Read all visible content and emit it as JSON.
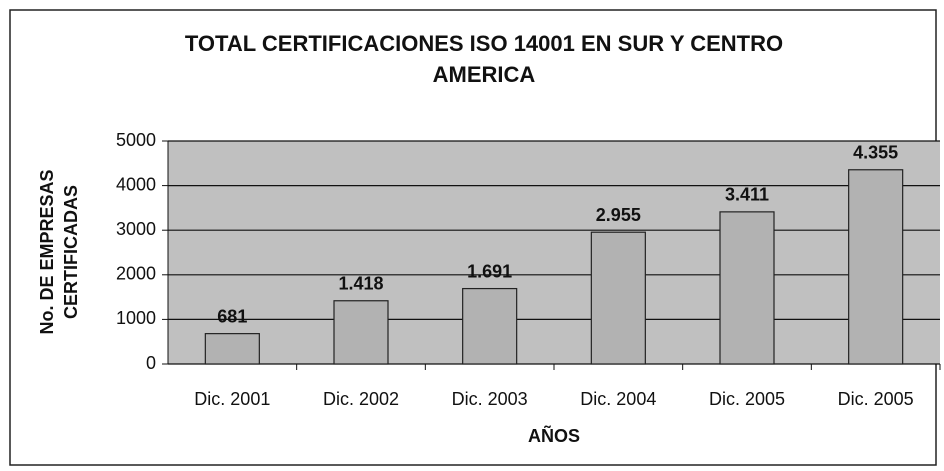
{
  "chart_data": {
    "type": "bar",
    "title": [
      "TOTAL CERTIFICACIONES ISO 14001 EN SUR Y CENTRO",
      "AMERICA"
    ],
    "y_label": [
      "No. DE EMPRESAS",
      "CERTIFICADAS"
    ],
    "x_label": "AÑOS",
    "categories": [
      "Dic. 2001",
      "Dic. 2002",
      "Dic. 2003",
      "Dic. 2004",
      "Dic. 2005",
      "Dic. 2005"
    ],
    "values": [
      681,
      1418,
      1691,
      2955,
      3411,
      4355
    ],
    "value_labels": [
      "681",
      "1.418",
      "1.691",
      "2.955",
      "3.411",
      "4.355"
    ],
    "color": "#b2b2b2",
    "ylim": [
      0,
      5000
    ],
    "yticks": [
      0,
      1000,
      2000,
      3000,
      4000,
      5000
    ],
    "grid": true
  }
}
